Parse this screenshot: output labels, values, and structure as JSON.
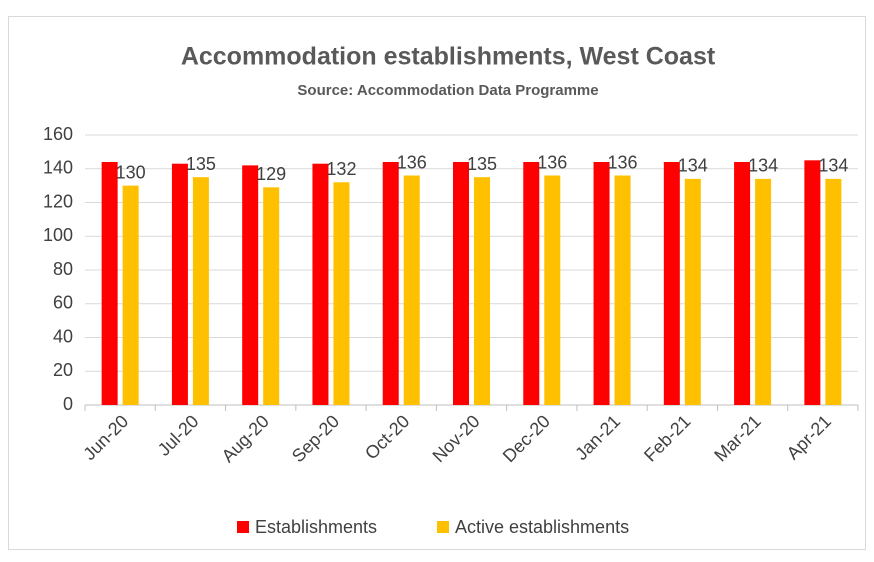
{
  "chart_data": {
    "type": "bar",
    "title": "Accommodation establishments, West Coast",
    "subtitle": "Source: Accommodation Data Programme",
    "categories": [
      "Jun-20",
      "Jul-20",
      "Aug-20",
      "Sep-20",
      "Oct-20",
      "Nov-20",
      "Dec-20",
      "Jan-21",
      "Feb-21",
      "Mar-21",
      "Apr-21"
    ],
    "series": [
      {
        "name": "Establishments",
        "color": "#ff0000",
        "values": [
          144,
          143,
          142,
          143,
          144,
          144,
          144,
          144,
          144,
          144,
          145
        ]
      },
      {
        "name": "Active establishments",
        "color": "#ffc000",
        "values": [
          130,
          135,
          129,
          132,
          136,
          135,
          136,
          136,
          134,
          134,
          134
        ],
        "data_labels": true
      }
    ],
    "ylim": [
      0,
      160
    ],
    "yticks": [
      0,
      20,
      40,
      60,
      80,
      100,
      120,
      140,
      160
    ],
    "grid": true,
    "legend": "bottom"
  }
}
